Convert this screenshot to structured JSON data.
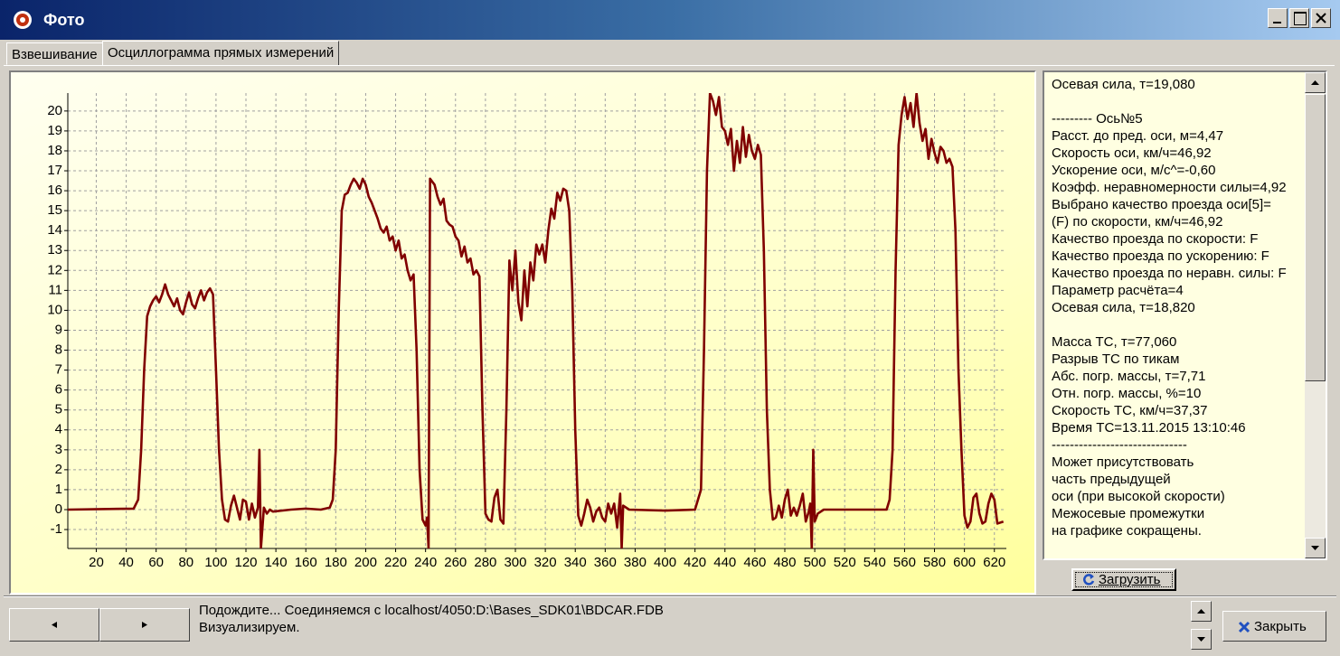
{
  "window": {
    "title": "Фото"
  },
  "tabs": [
    "Взвешивание",
    "Осциллограмма прямых измерений"
  ],
  "chart_data": {
    "type": "line",
    "color": "#800000",
    "grid": true,
    "xlim": [
      1,
      628
    ],
    "ylim": [
      -1.95,
      20.9
    ],
    "xticks": [
      20,
      40,
      60,
      80,
      100,
      120,
      140,
      160,
      180,
      200,
      220,
      240,
      260,
      280,
      300,
      320,
      340,
      360,
      380,
      400,
      420,
      440,
      460,
      480,
      500,
      520,
      540,
      560,
      580,
      600,
      620
    ],
    "yticks": [
      -1,
      0,
      1,
      2,
      3,
      4,
      5,
      6,
      7,
      8,
      9,
      10,
      11,
      12,
      13,
      14,
      15,
      16,
      17,
      18,
      19,
      20
    ],
    "x": [
      1,
      45,
      48,
      50,
      52,
      54,
      56,
      58,
      60,
      62,
      64,
      66,
      68,
      70,
      72,
      74,
      76,
      78,
      80,
      82,
      84,
      86,
      88,
      90,
      92,
      94,
      96,
      98,
      100,
      102,
      104,
      106,
      108,
      110,
      112,
      114,
      116,
      118,
      120,
      122,
      124,
      126,
      128,
      129,
      130,
      132,
      134,
      136,
      138,
      150,
      160,
      170,
      176,
      178,
      180,
      182,
      184,
      186,
      188,
      190,
      192,
      194,
      196,
      198,
      200,
      202,
      204,
      206,
      208,
      210,
      212,
      214,
      216,
      218,
      220,
      222,
      224,
      226,
      228,
      230,
      232,
      234,
      236,
      238,
      240,
      241,
      242,
      243,
      246,
      248,
      250,
      252,
      254,
      256,
      258,
      260,
      262,
      264,
      266,
      268,
      270,
      272,
      274,
      276,
      278,
      280,
      282,
      284,
      286,
      288,
      290,
      292,
      294,
      296,
      298,
      300,
      302,
      304,
      306,
      308,
      310,
      312,
      314,
      316,
      318,
      320,
      322,
      324,
      326,
      328,
      330,
      332,
      334,
      336,
      338,
      340,
      342,
      344,
      346,
      348,
      350,
      352,
      354,
      356,
      358,
      360,
      362,
      364,
      366,
      368,
      370,
      371,
      372,
      376,
      400,
      420,
      424,
      426,
      428,
      430,
      432,
      434,
      436,
      438,
      440,
      442,
      444,
      446,
      448,
      450,
      452,
      454,
      456,
      458,
      460,
      462,
      464,
      466,
      468,
      470,
      472,
      474,
      476,
      478,
      480,
      482,
      484,
      486,
      488,
      490,
      492,
      494,
      496,
      497,
      498,
      499,
      500,
      502,
      506,
      548,
      550,
      552,
      554,
      556,
      558,
      560,
      562,
      564,
      566,
      568,
      570,
      572,
      574,
      576,
      578,
      580,
      582,
      584,
      586,
      588,
      590,
      592,
      594,
      596,
      598,
      600,
      602,
      604,
      606,
      608,
      610,
      612,
      614,
      616,
      618,
      620,
      622,
      626
    ],
    "values": [
      0,
      0.05,
      0.5,
      3,
      7,
      9.7,
      10.2,
      10.5,
      10.7,
      10.4,
      10.8,
      11.3,
      10.8,
      10.5,
      10.2,
      10.6,
      10,
      9.8,
      10.4,
      10.9,
      10.3,
      10.1,
      10.6,
      11,
      10.5,
      10.9,
      11.1,
      10.8,
      7,
      3,
      0.5,
      -0.5,
      -0.6,
      0.2,
      0.7,
      0.1,
      -0.5,
      0.5,
      0.4,
      -0.5,
      0.3,
      -0.4,
      0.1,
      3,
      -1.95,
      0.1,
      -0.2,
      0,
      -0.1,
      0,
      0.05,
      0,
      0.1,
      0.5,
      3,
      10,
      15,
      15.8,
      15.9,
      16.3,
      16.6,
      16.4,
      16.1,
      16.6,
      16.3,
      15.7,
      15.4,
      15,
      14.6,
      14.1,
      13.9,
      14.2,
      13.5,
      13.7,
      13,
      13.5,
      12.6,
      12.8,
      12,
      11.5,
      11.8,
      8,
      2,
      -0.5,
      -0.8,
      -0.4,
      -1.95,
      16.6,
      16.3,
      15.7,
      15.3,
      15.6,
      14.5,
      14.3,
      14.2,
      13.7,
      13.5,
      12.7,
      13.2,
      12.4,
      12.6,
      11.8,
      12,
      11.7,
      5,
      -0.2,
      -0.5,
      -0.6,
      0.6,
      1,
      -0.5,
      -0.7,
      5,
      12.5,
      11,
      13,
      10.4,
      9.5,
      12,
      10.2,
      12.4,
      11.5,
      13.3,
      12.8,
      13.3,
      12.4,
      14,
      15.1,
      14.6,
      15.9,
      15.5,
      16.1,
      16,
      15,
      11,
      4,
      -0.3,
      -0.8,
      -0.2,
      0.5,
      0.1,
      -0.6,
      -0.1,
      0.1,
      -0.4,
      -0.6,
      0.3,
      -0.2,
      0.3,
      -0.9,
      0.8,
      -1.95,
      0.2,
      0,
      -0.05,
      0,
      1,
      8,
      17,
      20.9,
      20.5,
      19.8,
      20.7,
      19.2,
      19,
      18.3,
      19.1,
      17,
      18.5,
      17.4,
      19.2,
      17.7,
      18.8,
      18,
      17.6,
      18.3,
      17.8,
      13,
      5,
      1,
      -0.5,
      -0.4,
      0.2,
      -0.4,
      0.5,
      1,
      -0.3,
      0.1,
      -0.3,
      0.2,
      0.8,
      -0.6,
      -0.1,
      0.3,
      -1.95,
      3,
      -0.6,
      -0.2,
      0,
      0,
      0.5,
      3,
      12,
      18.3,
      19.8,
      20.7,
      19.6,
      20.4,
      19.2,
      20.9,
      19.4,
      18.5,
      19.1,
      17.6,
      18.6,
      17.9,
      17.4,
      18.2,
      18,
      17.4,
      17.6,
      17.2,
      14,
      7,
      3,
      -0.3,
      -0.9,
      -0.6,
      0.6,
      0.8,
      -0.2,
      -0.7,
      -0.6,
      0.3,
      0.8,
      0.5,
      -0.7,
      -0.6
    ]
  },
  "info": {
    "blocks": [
      [
        "Осевая сила, т=19,080"
      ],
      [
        "---------  Ось№5",
        "Расст. до пред. оси, м=4,47",
        "Скорость оси, км/ч=46,92",
        "Ускорение оси, м/с^=-0,60",
        "Коэфф. неравномерности силы=4,92",
        "Выбрано качество проезда оси[5]=",
        "(F) по скорости, км/ч=46,92",
        "Качество проезда по скорости: F",
        "Качество проезда по ускорению: F",
        "Качество проезда по неравн. силы: F",
        "Параметр расчёта=4",
        "Осевая сила, т=18,820"
      ],
      [
        "Масса ТС, т=77,060",
        "Разрыв ТС по тикам",
        "Абс. погр. массы, т=7,71",
        "Отн. погр. массы, %=10",
        "Скорость ТС, км/ч=37,37",
        "Время ТС=13.11.2015 13:10:46",
        "------------------------------",
        "Может присутствовать",
        "часть предыдущей",
        "оси (при высокой скорости)",
        "Межосевые промежутки",
        "на графике сокращены."
      ]
    ]
  },
  "buttons": {
    "load": "Загрузить",
    "close": "Закрыть"
  },
  "status": [
    "Подождите...  Соединяемся с localhost/4050:D:\\Bases_SDK01\\BDCAR.FDB",
    "Визуализируем."
  ]
}
